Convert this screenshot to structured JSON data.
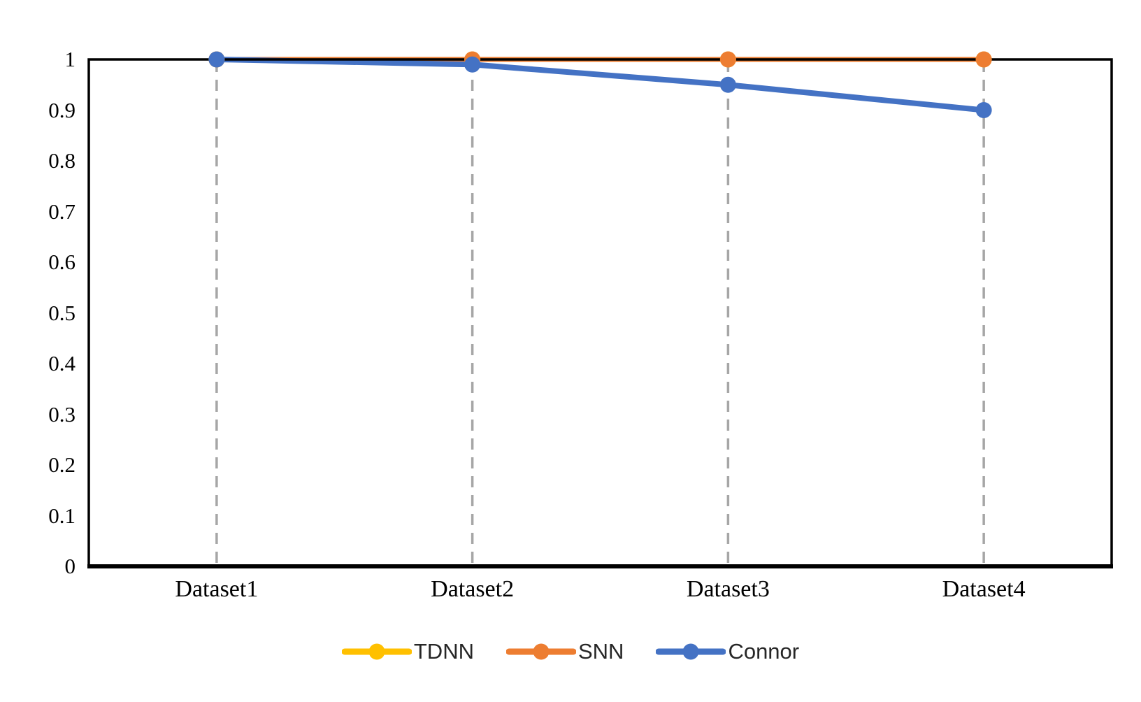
{
  "chart_data": {
    "type": "line",
    "title": "",
    "xlabel": "",
    "ylabel": "",
    "categories": [
      "Dataset1",
      "Dataset2",
      "Dataset3",
      "Dataset4"
    ],
    "series": [
      {
        "name": "TDNN",
        "color": "#ffc000",
        "marker": "circle",
        "values": [
          1,
          1,
          1,
          1
        ]
      },
      {
        "name": "SNN",
        "color": "#ed7d31",
        "marker": "circle",
        "values": [
          1,
          1,
          1,
          1
        ]
      },
      {
        "name": "Connor",
        "color": "#4472c4",
        "marker": "circle",
        "values": [
          1,
          0.99,
          0.95,
          0.9
        ]
      }
    ],
    "ylim": [
      0,
      1
    ],
    "y_tick_labels": [
      "0",
      "0.1",
      "0.2",
      "0.3",
      "0.4",
      "0.5",
      "0.6",
      "0.7",
      "0.8",
      "0.9",
      "1"
    ],
    "grid": "vertical-dashed-at-categories",
    "gridline_color": "#a6a6a6",
    "axis_color": "#000000",
    "legend_position": "bottom"
  }
}
